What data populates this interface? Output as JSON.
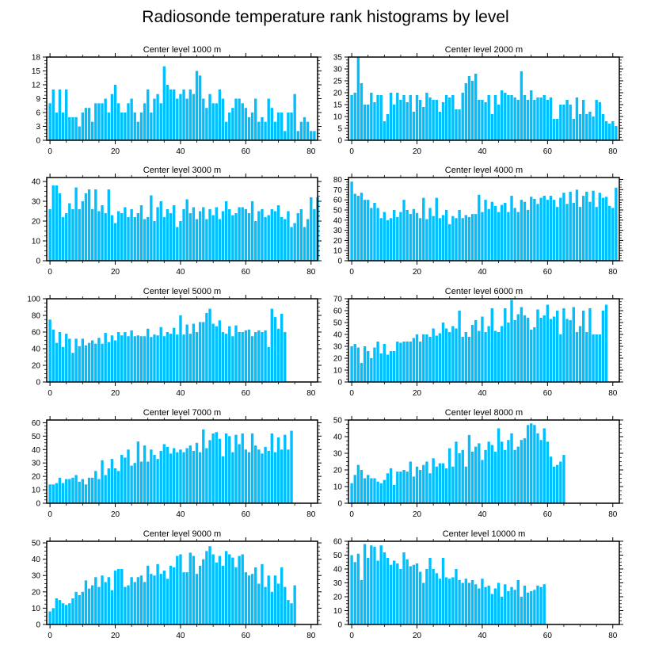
{
  "title": "Radiosonde temperature rank histograms by level",
  "bar_color": "#00BFFF",
  "chart_data": [
    {
      "type": "bar",
      "title": "Center level 1000 m",
      "xlim": [
        -1,
        82
      ],
      "ylim": [
        0,
        18
      ],
      "yticks": [
        0,
        3,
        6,
        9,
        12,
        15,
        18
      ],
      "xticks": [
        0,
        20,
        40,
        60,
        80
      ],
      "values": [
        8,
        11,
        6,
        11,
        6,
        11,
        5,
        5,
        5,
        3,
        6,
        7,
        7,
        4,
        8,
        8,
        8,
        9,
        6,
        10,
        12,
        8,
        6,
        6,
        8,
        9,
        6,
        4,
        6,
        8,
        11,
        6,
        9,
        10,
        8,
        16,
        12,
        11,
        11,
        9,
        10,
        11,
        9,
        11,
        10,
        15,
        14,
        9,
        7,
        10,
        8,
        8,
        11,
        9,
        4,
        6,
        7,
        9,
        9,
        8,
        7,
        5,
        6,
        9,
        4,
        5,
        4,
        9,
        7,
        4,
        6,
        6,
        2,
        6,
        6,
        10,
        2,
        4,
        5,
        4,
        2,
        2
      ]
    },
    {
      "type": "bar",
      "title": "Center level 2000 m",
      "xlim": [
        -1,
        82
      ],
      "ylim": [
        0,
        35
      ],
      "yticks": [
        0,
        5,
        10,
        15,
        20,
        25,
        30,
        35
      ],
      "xticks": [
        0,
        20,
        40,
        60,
        80
      ],
      "values": [
        19,
        20,
        35,
        24,
        15,
        15,
        20,
        16,
        19,
        19,
        8,
        11,
        20,
        15,
        20,
        17,
        19,
        16,
        19,
        12,
        19,
        17,
        14,
        20,
        18,
        17,
        17,
        12,
        16,
        19,
        18,
        19,
        13,
        13,
        20,
        24,
        27,
        25,
        28,
        17,
        17,
        16,
        19,
        11,
        19,
        15,
        21,
        20,
        19,
        19,
        18,
        17,
        29,
        19,
        17,
        21,
        17,
        18,
        18,
        19,
        17,
        18,
        9,
        9,
        15,
        15,
        17,
        15,
        9,
        18,
        11,
        17,
        11,
        12,
        10,
        17,
        16,
        11,
        8,
        7,
        8,
        6
      ]
    },
    {
      "type": "bar",
      "title": "Center level 3000 m",
      "xlim": [
        -1,
        82
      ],
      "ylim": [
        0,
        42
      ],
      "yticks": [
        0,
        10,
        20,
        30,
        40
      ],
      "xticks": [
        0,
        20,
        40,
        60,
        80
      ],
      "values": [
        26,
        38,
        38,
        34,
        22,
        24,
        29,
        26,
        37,
        26,
        30,
        34,
        36,
        26,
        36,
        25,
        28,
        24,
        36,
        23,
        19,
        25,
        24,
        27,
        22,
        26,
        22,
        24,
        28,
        21,
        22,
        33,
        20,
        27,
        30,
        22,
        26,
        24,
        28,
        17,
        20,
        26,
        31,
        24,
        27,
        21,
        25,
        27,
        21,
        26,
        23,
        27,
        21,
        25,
        30,
        26,
        23,
        24,
        27,
        27,
        26,
        24,
        30,
        20,
        25,
        26,
        22,
        23,
        26,
        25,
        28,
        22,
        21,
        25,
        17,
        19,
        24,
        26,
        17,
        21,
        32,
        26,
        32
      ]
    },
    {
      "type": "bar",
      "title": "Center level 4000 m",
      "xlim": [
        -1,
        82
      ],
      "ylim": [
        0,
        82
      ],
      "yticks": [
        0,
        10,
        20,
        30,
        40,
        50,
        60,
        70,
        80
      ],
      "xticks": [
        0,
        20,
        40,
        60,
        80
      ],
      "values": [
        78,
        66,
        64,
        67,
        60,
        60,
        52,
        57,
        52,
        42,
        48,
        40,
        42,
        50,
        43,
        48,
        60,
        50,
        46,
        51,
        47,
        42,
        62,
        41,
        52,
        44,
        62,
        42,
        45,
        50,
        36,
        44,
        42,
        50,
        42,
        45,
        43,
        46,
        46,
        65,
        48,
        60,
        51,
        58,
        54,
        48,
        55,
        57,
        48,
        64,
        52,
        48,
        60,
        58,
        50,
        63,
        61,
        56,
        62,
        64,
        60,
        64,
        60,
        53,
        62,
        67,
        56,
        68,
        57,
        70,
        53,
        64,
        68,
        58,
        69,
        53,
        67,
        62,
        63,
        54,
        52,
        72
      ]
    },
    {
      "type": "bar",
      "title": "Center level 5000 m",
      "xlim": [
        -1,
        82
      ],
      "ylim": [
        0,
        100
      ],
      "yticks": [
        0,
        20,
        40,
        60,
        80,
        100
      ],
      "xticks": [
        0,
        20,
        40,
        60,
        80
      ],
      "values": [
        75,
        63,
        47,
        60,
        42,
        58,
        52,
        35,
        52,
        43,
        52,
        44,
        47,
        50,
        46,
        53,
        46,
        59,
        48,
        56,
        50,
        60,
        56,
        60,
        55,
        62,
        55,
        56,
        55,
        55,
        64,
        54,
        57,
        56,
        66,
        55,
        60,
        58,
        65,
        57,
        80,
        57,
        69,
        58,
        70,
        60,
        72,
        72,
        83,
        88,
        70,
        67,
        74,
        60,
        58,
        67,
        55,
        68,
        60,
        60,
        62,
        63,
        55,
        60,
        62,
        60,
        62,
        42,
        88,
        78,
        64,
        82,
        60
      ]
    },
    {
      "type": "bar",
      "title": "Center level 6000 m",
      "xlim": [
        -1,
        82
      ],
      "ylim": [
        0,
        70
      ],
      "yticks": [
        0,
        10,
        20,
        30,
        40,
        50,
        60,
        70
      ],
      "xticks": [
        0,
        20,
        40,
        60,
        80
      ],
      "values": [
        30,
        32,
        29,
        16,
        30,
        26,
        20,
        29,
        34,
        24,
        32,
        23,
        26,
        26,
        34,
        33,
        34,
        34,
        34,
        37,
        40,
        34,
        40,
        40,
        38,
        45,
        39,
        41,
        50,
        45,
        42,
        47,
        45,
        60,
        38,
        42,
        38,
        48,
        52,
        43,
        55,
        42,
        47,
        62,
        43,
        42,
        47,
        62,
        50,
        69,
        52,
        57,
        63,
        56,
        54,
        44,
        46,
        61,
        54,
        56,
        65,
        53,
        55,
        60,
        40,
        62,
        53,
        52,
        63,
        42,
        47,
        60,
        42,
        62,
        40,
        40,
        40,
        60,
        65
      ]
    },
    {
      "type": "bar",
      "title": "Center level 7000 m",
      "xlim": [
        -1,
        82
      ],
      "ylim": [
        0,
        62
      ],
      "yticks": [
        0,
        10,
        20,
        30,
        40,
        50,
        60
      ],
      "xticks": [
        0,
        20,
        40,
        60,
        80
      ],
      "values": [
        14,
        14,
        15,
        19,
        15,
        18,
        18,
        19,
        21,
        16,
        18,
        14,
        19,
        19,
        24,
        18,
        32,
        21,
        26,
        33,
        26,
        24,
        36,
        34,
        40,
        28,
        30,
        46,
        31,
        43,
        31,
        40,
        36,
        33,
        39,
        44,
        42,
        37,
        41,
        38,
        40,
        38,
        41,
        43,
        39,
        45,
        38,
        55,
        41,
        47,
        52,
        53,
        48,
        35,
        52,
        50,
        38,
        51,
        44,
        52,
        40,
        38,
        52,
        43,
        40,
        37,
        42,
        39,
        52,
        38,
        49,
        40,
        51,
        40,
        54
      ]
    },
    {
      "type": "bar",
      "title": "Center level 8000 m",
      "xlim": [
        -1,
        82
      ],
      "ylim": [
        0,
        50
      ],
      "yticks": [
        0,
        10,
        20,
        30,
        40,
        50
      ],
      "xticks": [
        0,
        20,
        40,
        60,
        80
      ],
      "values": [
        12,
        17,
        23,
        20,
        15,
        17,
        15,
        15,
        13,
        12,
        14,
        18,
        21,
        11,
        19,
        19,
        20,
        19,
        25,
        16,
        22,
        20,
        23,
        25,
        18,
        27,
        22,
        24,
        24,
        21,
        33,
        22,
        37,
        30,
        32,
        22,
        41,
        31,
        34,
        36,
        26,
        32,
        37,
        35,
        31,
        45,
        37,
        32,
        38,
        42,
        32,
        34,
        38,
        39,
        47,
        48,
        47,
        42,
        38,
        45,
        37,
        28,
        22,
        23,
        25,
        29
      ]
    },
    {
      "type": "bar",
      "title": "Center level 9000 m",
      "xlim": [
        -1,
        82
      ],
      "ylim": [
        0,
        51
      ],
      "yticks": [
        0,
        10,
        20,
        30,
        40,
        50
      ],
      "xticks": [
        0,
        20,
        40,
        60,
        80
      ],
      "values": [
        8,
        10,
        16,
        15,
        13,
        12,
        13,
        16,
        20,
        18,
        20,
        27,
        22,
        24,
        29,
        23,
        30,
        26,
        29,
        21,
        33,
        34,
        34,
        23,
        24,
        29,
        26,
        29,
        30,
        26,
        36,
        31,
        30,
        37,
        31,
        33,
        28,
        36,
        35,
        42,
        43,
        32,
        32,
        44,
        42,
        31,
        36,
        40,
        45,
        48,
        43,
        38,
        42,
        36,
        45,
        43,
        41,
        35,
        42,
        43,
        32,
        30,
        31,
        35,
        25,
        37,
        23,
        30,
        20,
        30,
        25,
        35,
        23,
        15,
        13,
        24
      ]
    },
    {
      "type": "bar",
      "title": "Center level 10000 m",
      "xlim": [
        -1,
        82
      ],
      "ylim": [
        0,
        60
      ],
      "yticks": [
        0,
        10,
        20,
        30,
        40,
        50,
        60
      ],
      "xticks": [
        0,
        20,
        40,
        60,
        80
      ],
      "values": [
        50,
        45,
        51,
        32,
        58,
        48,
        57,
        56,
        46,
        57,
        52,
        48,
        43,
        46,
        44,
        40,
        52,
        47,
        42,
        43,
        44,
        38,
        30,
        40,
        48,
        40,
        37,
        33,
        48,
        34,
        33,
        34,
        40,
        32,
        30,
        33,
        30,
        32,
        29,
        26,
        33,
        27,
        28,
        22,
        26,
        30,
        20,
        29,
        24,
        27,
        25,
        32,
        20,
        28,
        23,
        24,
        25,
        28,
        27,
        29
      ]
    }
  ]
}
